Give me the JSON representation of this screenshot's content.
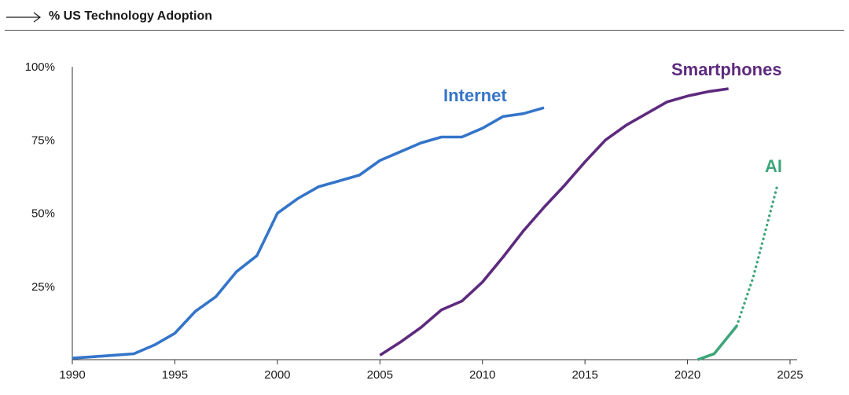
{
  "header": {
    "title": "% US Technology Adoption",
    "icon": "arrow-right-icon"
  },
  "chart_data": {
    "type": "line",
    "title": "% US Technology Adoption",
    "xlabel": "",
    "ylabel": "",
    "xlim": [
      1990,
      2025
    ],
    "ylim": [
      0,
      100
    ],
    "x_ticks": [
      1990,
      1995,
      2000,
      2005,
      2010,
      2015,
      2020,
      2025
    ],
    "x_tick_labels": [
      "1990",
      "1995",
      "2000",
      "2005",
      "2010",
      "2015",
      "2020",
      "2025"
    ],
    "y_ticks": [
      25,
      50,
      75,
      100
    ],
    "y_tick_labels": [
      "25%",
      "50%",
      "75%",
      "100%"
    ],
    "grid": false,
    "legend": "inline labels",
    "series": [
      {
        "name": "Internet",
        "color": "#3475C9",
        "style": "solid",
        "points": [
          [
            1990,
            0.5
          ],
          [
            1991,
            1
          ],
          [
            1992,
            1.5
          ],
          [
            1993,
            2
          ],
          [
            1994,
            5
          ],
          [
            1995,
            9
          ],
          [
            1996,
            16.5
          ],
          [
            1997,
            21.5
          ],
          [
            1998,
            30
          ],
          [
            1999,
            35.5
          ],
          [
            2000,
            50
          ],
          [
            2001,
            55
          ],
          [
            2002,
            59
          ],
          [
            2003,
            61
          ],
          [
            2004,
            63
          ],
          [
            2005,
            68
          ],
          [
            2006,
            71
          ],
          [
            2007,
            74
          ],
          [
            2008,
            76
          ],
          [
            2009,
            76
          ],
          [
            2010,
            79
          ],
          [
            2011,
            83
          ],
          [
            2012,
            84
          ],
          [
            2013,
            86
          ]
        ]
      },
      {
        "name": "Smartphones",
        "color": "#5E2A7E",
        "style": "solid",
        "points": [
          [
            2005,
            1.5
          ],
          [
            2006,
            6
          ],
          [
            2007,
            11
          ],
          [
            2008,
            17
          ],
          [
            2009,
            20
          ],
          [
            2010,
            26.5
          ],
          [
            2011,
            35
          ],
          [
            2012,
            44
          ],
          [
            2013,
            52
          ],
          [
            2014,
            59.5
          ],
          [
            2015,
            67.5
          ],
          [
            2016,
            75
          ],
          [
            2017,
            80
          ],
          [
            2018,
            84
          ],
          [
            2019,
            88
          ],
          [
            2020,
            90
          ],
          [
            2021,
            91.5
          ],
          [
            2022,
            92.5
          ]
        ]
      },
      {
        "name": "AI",
        "color": "#3EA57A",
        "segments": [
          {
            "style": "solid",
            "points": [
              [
                2020.5,
                0
              ],
              [
                2021.3,
                2
              ],
              [
                2022.4,
                11.5
              ]
            ]
          },
          {
            "style": "dotted",
            "points": [
              [
                2022.4,
                11.5
              ],
              [
                2023.2,
                28
              ],
              [
                2023.8,
                44
              ],
              [
                2024.4,
                60
              ]
            ]
          }
        ]
      }
    ]
  }
}
